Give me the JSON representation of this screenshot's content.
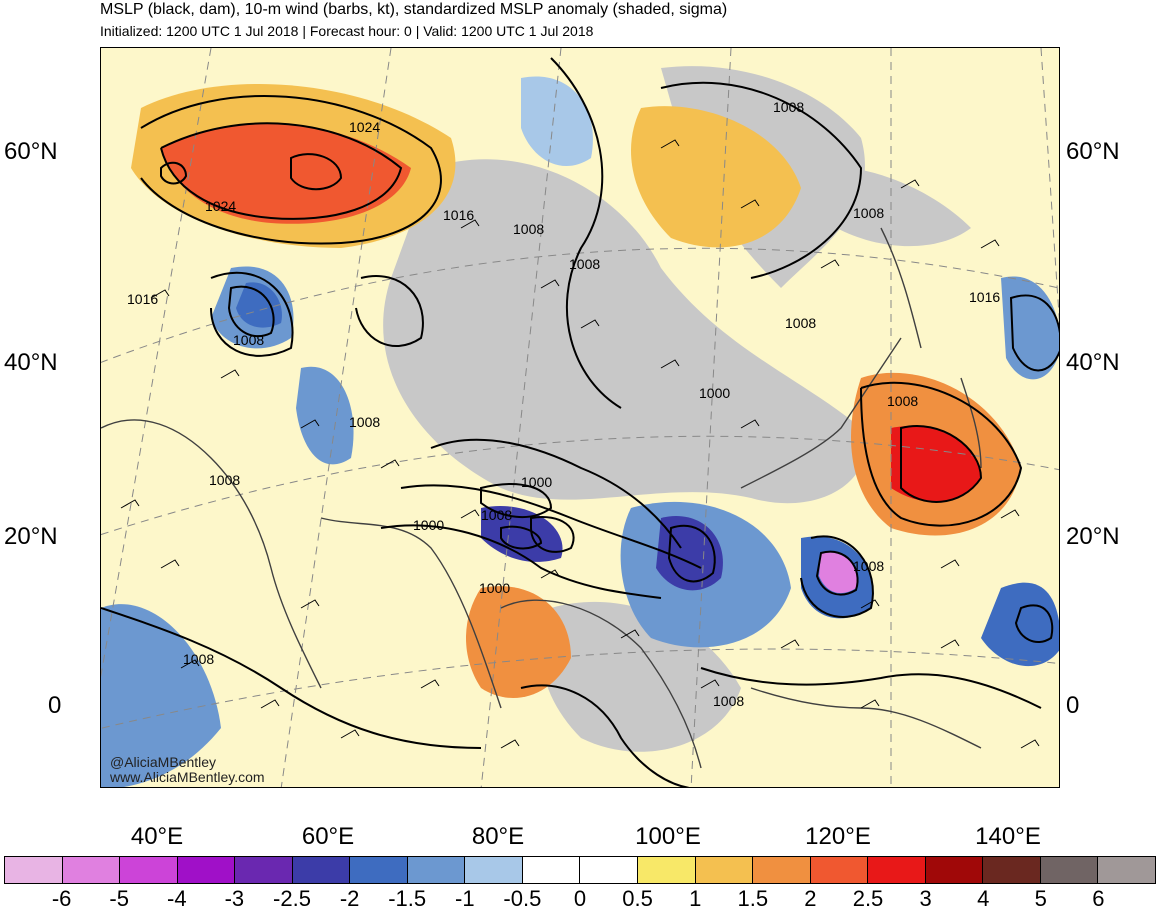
{
  "header": {
    "title": "MSLP (black, dam), 10-m wind (barbs, kt), standardized MSLP anomaly (shaded, sigma)",
    "subtitle": "Initialized: 1200 UTC 1 Jul 2018 | Forecast hour: 0 | Valid: 1200 UTC 1 Jul 2018"
  },
  "axes": {
    "lat_labels": [
      "60°N",
      "40°N",
      "20°N",
      "0"
    ],
    "lon_labels": [
      "40°E",
      "60°E",
      "80°E",
      "100°E",
      "120°E",
      "140°E"
    ]
  },
  "credit": {
    "handle": "@AliciaMBentley",
    "site": "www.AliciaMBentley.com"
  },
  "contour_labels": [
    "1024",
    "1024",
    "1016",
    "1008",
    "1008",
    "1008",
    "1016",
    "1008",
    "1008",
    "1008",
    "1000",
    "1016",
    "1008",
    "1000",
    "1008",
    "1000",
    "1008",
    "1000",
    "1008",
    "1008",
    "1008",
    "1008"
  ],
  "colorbar": {
    "colors": [
      "#e8b4e4",
      "#e080e0",
      "#cc44d8",
      "#a010c8",
      "#6a28b0",
      "#3c3ca8",
      "#3e6cc0",
      "#6c98d0",
      "#a8c8e8",
      "#ffffff",
      "#ffffff",
      "#f8e868",
      "#f4c050",
      "#f09040",
      "#f05830",
      "#e81818",
      "#a00808",
      "#6a2820",
      "#706464",
      "#a09898"
    ],
    "ticks": [
      "-6",
      "-5",
      "-4",
      "-3",
      "-2.5",
      "-2",
      "-1.5",
      "-1",
      "-0.5",
      "0",
      "0.5",
      "1",
      "1.5",
      "2",
      "2.5",
      "3",
      "4",
      "5",
      "6"
    ]
  }
}
